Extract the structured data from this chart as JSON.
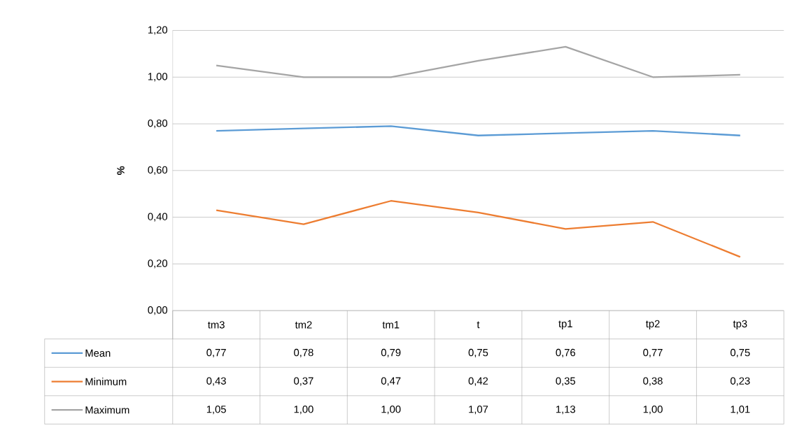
{
  "chart_data": {
    "type": "line",
    "ylabel": "%",
    "categories": [
      "tm3",
      "tm2",
      "tm1",
      "t",
      "tp1",
      "tp2",
      "tp3"
    ],
    "series": [
      {
        "name": "Mean",
        "color": "#5b9bd5",
        "values": [
          0.77,
          0.78,
          0.79,
          0.75,
          0.76,
          0.77,
          0.75
        ],
        "value_labels": [
          "0,77",
          "0,78",
          "0,79",
          "0,75",
          "0,76",
          "0,77",
          "0,75"
        ]
      },
      {
        "name": "Minimum",
        "color": "#ed7d31",
        "values": [
          0.43,
          0.37,
          0.47,
          0.42,
          0.35,
          0.38,
          0.23
        ],
        "value_labels": [
          "0,43",
          "0,37",
          "0,47",
          "0,42",
          "0,35",
          "0,38",
          "0,23"
        ]
      },
      {
        "name": "Maximum",
        "color": "#a5a5a5",
        "values": [
          1.05,
          1.0,
          1.0,
          1.07,
          1.13,
          1.0,
          1.01
        ],
        "value_labels": [
          "1,05",
          "1,00",
          "1,00",
          "1,07",
          "1,13",
          "1,00",
          "1,01"
        ]
      }
    ],
    "ylim": [
      0,
      1.2
    ],
    "yticks": [
      {
        "value": 0,
        "label": "0,00"
      },
      {
        "value": 0.2,
        "label": "0,20"
      },
      {
        "value": 0.4,
        "label": "0,40"
      },
      {
        "value": 0.6,
        "label": "0,60"
      },
      {
        "value": 0.8,
        "label": "0,80"
      },
      {
        "value": 1.0,
        "label": "1,00"
      },
      {
        "value": 1.2,
        "label": "1,20"
      }
    ],
    "grid": "y",
    "legend": "bottom",
    "marker": "none",
    "line_style": "solid"
  }
}
